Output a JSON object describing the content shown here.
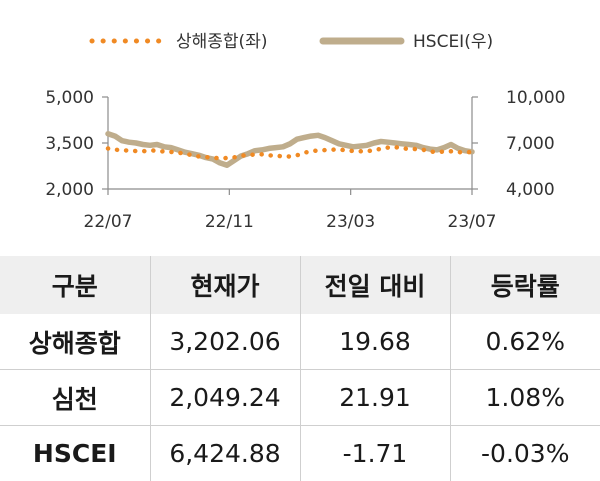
{
  "chart_data": {
    "type": "line",
    "title": "",
    "legend": {
      "placement": "top-center"
    },
    "grid": false,
    "x_ticks": [
      "22/07",
      "22/11",
      "23/03",
      "23/07"
    ],
    "x": [
      "2022-07-04",
      "2022-07-11",
      "2022-07-18",
      "2022-07-25",
      "2022-08-01",
      "2022-08-08",
      "2022-08-15",
      "2022-08-22",
      "2022-08-29",
      "2022-09-05",
      "2022-09-12",
      "2022-09-19",
      "2022-09-26",
      "2022-10-03",
      "2022-10-10",
      "2022-10-17",
      "2022-10-24",
      "2022-10-31",
      "2022-11-07",
      "2022-11-14",
      "2022-11-21",
      "2022-11-28",
      "2022-12-05",
      "2022-12-12",
      "2022-12-19",
      "2022-12-26",
      "2023-01-02",
      "2023-01-09",
      "2023-01-16",
      "2023-01-23",
      "2023-01-30",
      "2023-02-06",
      "2023-02-13",
      "2023-02-20",
      "2023-02-27",
      "2023-03-06",
      "2023-03-13",
      "2023-03-20",
      "2023-03-27",
      "2023-04-03",
      "2023-04-10",
      "2023-04-17",
      "2023-04-24",
      "2023-05-01",
      "2023-05-08",
      "2023-05-15",
      "2023-05-22",
      "2023-05-29",
      "2023-06-05",
      "2023-06-12",
      "2023-06-19",
      "2023-06-26",
      "2023-07-03"
    ],
    "left_axis": {
      "ylim": [
        2000,
        5000
      ],
      "ticks": [
        "2,000",
        "3,500",
        "5,000"
      ]
    },
    "right_axis": {
      "ylim": [
        4000,
        10000
      ],
      "ticks": [
        "4,000",
        "7,000",
        "10,000"
      ]
    },
    "series": [
      {
        "name": "상해종합(좌)",
        "axis": "left",
        "style": "dotted",
        "color": "#f08a24",
        "values": [
          3320,
          3280,
          3270,
          3250,
          3240,
          3230,
          3260,
          3250,
          3220,
          3210,
          3180,
          3160,
          3100,
          3060,
          3040,
          3020,
          3000,
          3010,
          3030,
          3080,
          3120,
          3120,
          3130,
          3100,
          3080,
          3070,
          3060,
          3100,
          3180,
          3230,
          3260,
          3270,
          3280,
          3290,
          3260,
          3240,
          3230,
          3230,
          3270,
          3310,
          3350,
          3370,
          3320,
          3310,
          3300,
          3280,
          3220,
          3210,
          3220,
          3230,
          3200,
          3200,
          3202
        ]
      },
      {
        "name": "HSCEI(우)",
        "axis": "right",
        "style": "solid",
        "color": "#bfad8c",
        "values": [
          7600,
          7450,
          7150,
          7050,
          7000,
          6900,
          6850,
          6900,
          6750,
          6700,
          6550,
          6400,
          6300,
          6200,
          6050,
          5950,
          5700,
          5550,
          5850,
          6150,
          6300,
          6500,
          6550,
          6650,
          6700,
          6750,
          6950,
          7250,
          7350,
          7450,
          7500,
          7350,
          7150,
          6950,
          6850,
          6750,
          6800,
          6850,
          7000,
          7100,
          7050,
          7000,
          6950,
          6900,
          6850,
          6700,
          6600,
          6550,
          6700,
          6900,
          6650,
          6500,
          6424.88
        ]
      }
    ]
  },
  "table": {
    "headers": [
      "구분",
      "현재가",
      "전일 대비",
      "등락률"
    ],
    "rows": [
      [
        "상해종합",
        "3,202.06",
        "19.68",
        "0.62%"
      ],
      [
        "심천",
        "2,049.24",
        "21.91",
        "1.08%"
      ],
      [
        "HSCEI",
        "6,424.88",
        "-1.71",
        "-0.03%"
      ]
    ]
  }
}
